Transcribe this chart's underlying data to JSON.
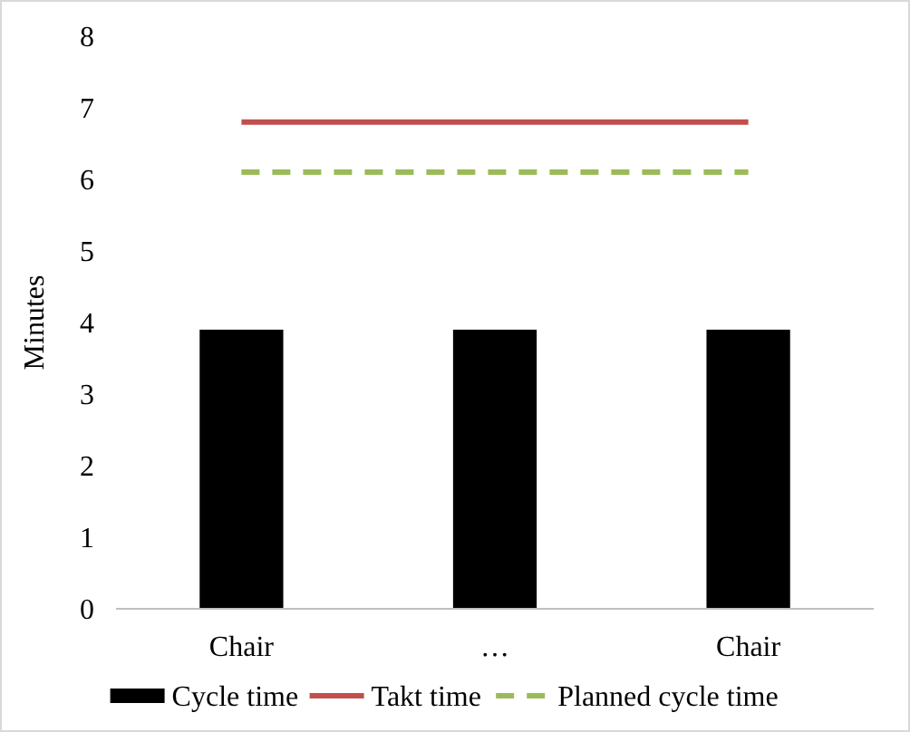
{
  "chart_data": {
    "type": "bar",
    "ylabel": "Minutes",
    "categories": [
      "Chair",
      "…",
      "Chair"
    ],
    "ylim": [
      0,
      8
    ],
    "yticks": [
      0,
      1,
      2,
      3,
      4,
      5,
      6,
      7,
      8
    ],
    "grid": false,
    "legend": "bottom",
    "series": [
      {
        "name": "Cycle time",
        "color": "#000000",
        "values": [
          3.9,
          3.9,
          3.9
        ]
      },
      {
        "name": "Takt time",
        "type": "line",
        "color": "#c0504d",
        "line_style": "solid",
        "values": [
          6.8,
          6.8,
          6.8
        ]
      },
      {
        "name": "Planned cycle time",
        "type": "line",
        "color": "#9bbb59",
        "line_style": "dashed",
        "values": [
          6.1,
          6.1,
          6.1
        ]
      }
    ]
  }
}
